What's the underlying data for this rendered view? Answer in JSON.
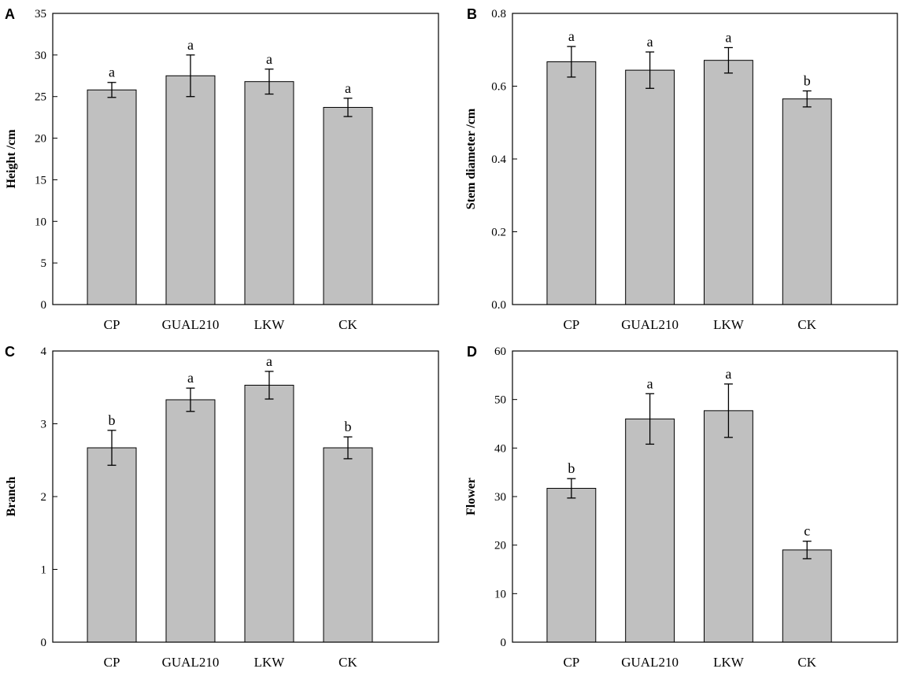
{
  "chart_data": [
    {
      "panel": "A",
      "type": "bar",
      "categories": [
        "CP",
        "GUAL210",
        "LKW",
        "CK"
      ],
      "values": [
        25.8,
        27.5,
        26.8,
        23.7
      ],
      "errors": [
        0.9,
        2.5,
        1.5,
        1.1
      ],
      "significance": [
        "a",
        "a",
        "a",
        "a"
      ],
      "ylabel": "Height /cm",
      "xlabel": "",
      "ylim": [
        0,
        35
      ],
      "yticks": [
        0,
        5,
        10,
        15,
        20,
        25,
        30,
        35
      ],
      "ytick_labels": [
        "0",
        "5",
        "10",
        "15",
        "20",
        "25",
        "30",
        "35"
      ]
    },
    {
      "panel": "B",
      "type": "bar",
      "categories": [
        "CP",
        "GUAL210",
        "LKW",
        "CK"
      ],
      "values": [
        0.667,
        0.644,
        0.671,
        0.565
      ],
      "errors": [
        0.042,
        0.05,
        0.035,
        0.022
      ],
      "significance": [
        "a",
        "a",
        "a",
        "b"
      ],
      "ylabel": "Stem diameter /cm",
      "xlabel": "",
      "ylim": [
        0,
        0.8
      ],
      "yticks": [
        0,
        0.2,
        0.4,
        0.6,
        0.8
      ],
      "ytick_labels": [
        "0.0",
        "0.2",
        "0.4",
        "0.6",
        "0.8"
      ]
    },
    {
      "panel": "C",
      "type": "bar",
      "categories": [
        "CP",
        "GUAL210",
        "LKW",
        "CK"
      ],
      "values": [
        2.67,
        3.33,
        3.53,
        2.67
      ],
      "errors": [
        0.24,
        0.16,
        0.19,
        0.15
      ],
      "significance": [
        "b",
        "a",
        "a",
        "b"
      ],
      "ylabel": "Branch",
      "xlabel": "",
      "ylim": [
        0,
        4
      ],
      "yticks": [
        0,
        1,
        2,
        3,
        4
      ],
      "ytick_labels": [
        "0",
        "1",
        "2",
        "3",
        "4"
      ]
    },
    {
      "panel": "D",
      "type": "bar",
      "categories": [
        "CP",
        "GUAL210",
        "LKW",
        "CK"
      ],
      "values": [
        31.7,
        46.0,
        47.7,
        19.0
      ],
      "errors": [
        2.0,
        5.2,
        5.5,
        1.8
      ],
      "significance": [
        "b",
        "a",
        "a",
        "c"
      ],
      "ylabel": "Flower",
      "xlabel": "",
      "ylim": [
        0,
        60
      ],
      "yticks": [
        0,
        10,
        20,
        30,
        40,
        50,
        60
      ],
      "ytick_labels": [
        "0",
        "10",
        "20",
        "30",
        "40",
        "50",
        "60"
      ]
    }
  ]
}
